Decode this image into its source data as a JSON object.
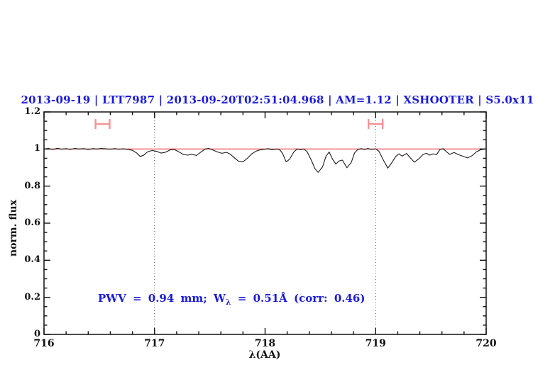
{
  "header": {
    "title": "2013-09-19 | LTT7987 | 2013-09-20T02:51:04.968 | AM=1.12 | XSHOOTER | S5.0x11",
    "color": "#1a1ad9"
  },
  "annotation": {
    "prefix": "PWV = 0.94 mm; W",
    "sub": "λ",
    "suffix": " = 0.51Å (corr: 0.46)",
    "color": "#1a1ad9"
  },
  "chart_data": {
    "type": "line",
    "title": "2013-09-19 | LTT7987 | 2013-09-20T02:51:04.968 | AM=1.12 | XSHOOTER | S5.0x11",
    "xlabel": "λ(AA)",
    "ylabel": "norm. flux",
    "xlim": [
      716,
      720
    ],
    "ylim": [
      0,
      1.2
    ],
    "x_major_ticks": [
      716,
      717,
      718,
      719,
      720
    ],
    "x_tick_labels": [
      "716",
      "717",
      "718",
      "719",
      "720"
    ],
    "x_minor_step": 0.2,
    "y_major_ticks": [
      0,
      0.2,
      0.4,
      0.6,
      0.8,
      1,
      1.2
    ],
    "y_tick_labels": [
      "0",
      "0.2",
      "0.4",
      "0.6",
      "0.8",
      "1",
      "1.2"
    ],
    "y_minor_step": 0.05,
    "grid": false,
    "dotted_vlines": [
      717,
      719
    ],
    "dotted_vline_color": "#555555",
    "frame_color": "#111111",
    "continuum_level": 1.0,
    "continuum_color": "#ee6666",
    "spectrum_color": "#1a1a1a",
    "marker_color": "#f29595",
    "band_markers": [
      {
        "center": 716.53,
        "half_width": 0.064,
        "flux": 1.135,
        "cap_half_height": 0.027
      },
      {
        "center": 719.0,
        "half_width": 0.064,
        "flux": 1.135,
        "cap_half_height": 0.027
      }
    ],
    "series": [
      {
        "name": "normalized spectrum",
        "points": [
          [
            716.0,
            1.0
          ],
          [
            716.04,
            1.003
          ],
          [
            716.08,
            0.997
          ],
          [
            716.12,
            1.004
          ],
          [
            716.16,
            0.999
          ],
          [
            716.2,
            1.002
          ],
          [
            716.24,
            0.998
          ],
          [
            716.28,
            1.003
          ],
          [
            716.32,
            1.0
          ],
          [
            716.36,
            1.002
          ],
          [
            716.4,
            0.997
          ],
          [
            716.44,
            1.002
          ],
          [
            716.48,
            1.0
          ],
          [
            716.52,
            1.003
          ],
          [
            716.56,
            1.001
          ],
          [
            716.6,
            0.999
          ],
          [
            716.64,
            1.002
          ],
          [
            716.68,
            0.999
          ],
          [
            716.72,
            1.001
          ],
          [
            716.76,
            0.998
          ],
          [
            716.8,
            0.993
          ],
          [
            716.84,
            0.978
          ],
          [
            716.87,
            0.96
          ],
          [
            716.9,
            0.966
          ],
          [
            716.94,
            0.986
          ],
          [
            716.98,
            0.992
          ],
          [
            717.02,
            0.987
          ],
          [
            717.06,
            0.978
          ],
          [
            717.1,
            0.983
          ],
          [
            717.14,
            0.995
          ],
          [
            717.18,
            0.997
          ],
          [
            717.22,
            0.985
          ],
          [
            717.26,
            0.971
          ],
          [
            717.3,
            0.967
          ],
          [
            717.34,
            0.972
          ],
          [
            717.38,
            0.965
          ],
          [
            717.42,
            0.984
          ],
          [
            717.46,
            1.0
          ],
          [
            717.49,
            1.003
          ],
          [
            717.53,
            0.994
          ],
          [
            717.57,
            0.984
          ],
          [
            717.61,
            0.977
          ],
          [
            717.65,
            0.982
          ],
          [
            717.68,
            0.974
          ],
          [
            717.72,
            0.954
          ],
          [
            717.76,
            0.934
          ],
          [
            717.8,
            0.931
          ],
          [
            717.84,
            0.95
          ],
          [
            717.88,
            0.974
          ],
          [
            717.92,
            0.989
          ],
          [
            717.96,
            0.996
          ],
          [
            718.0,
            0.999
          ],
          [
            718.03,
            1.002
          ],
          [
            718.06,
            0.996
          ],
          [
            718.1,
            1.0
          ],
          [
            718.13,
            0.998
          ],
          [
            718.16,
            0.975
          ],
          [
            718.19,
            0.931
          ],
          [
            718.22,
            0.944
          ],
          [
            718.26,
            0.984
          ],
          [
            718.29,
            1.0
          ],
          [
            718.32,
            0.996
          ],
          [
            718.35,
            1.0
          ],
          [
            718.38,
            0.986
          ],
          [
            718.42,
            0.938
          ],
          [
            718.45,
            0.895
          ],
          [
            718.48,
            0.874
          ],
          [
            718.52,
            0.904
          ],
          [
            718.55,
            0.96
          ],
          [
            718.58,
            0.984
          ],
          [
            718.61,
            0.945
          ],
          [
            718.64,
            0.919
          ],
          [
            718.67,
            0.936
          ],
          [
            718.7,
            0.94
          ],
          [
            718.74,
            0.899
          ],
          [
            718.78,
            0.928
          ],
          [
            718.81,
            0.98
          ],
          [
            718.84,
            0.998
          ],
          [
            718.87,
            1.002
          ],
          [
            718.9,
            0.997
          ],
          [
            718.93,
            1.003
          ],
          [
            718.96,
            0.998
          ],
          [
            719.0,
            1.001
          ],
          [
            719.03,
            0.988
          ],
          [
            719.07,
            0.94
          ],
          [
            719.11,
            0.897
          ],
          [
            719.14,
            0.921
          ],
          [
            719.18,
            0.958
          ],
          [
            719.21,
            0.974
          ],
          [
            719.24,
            0.962
          ],
          [
            719.28,
            0.976
          ],
          [
            719.31,
            0.955
          ],
          [
            719.35,
            0.929
          ],
          [
            719.39,
            0.947
          ],
          [
            719.43,
            0.971
          ],
          [
            719.46,
            0.977
          ],
          [
            719.49,
            0.967
          ],
          [
            719.52,
            0.974
          ],
          [
            719.55,
            0.969
          ],
          [
            719.58,
            0.996
          ],
          [
            719.61,
            1.002
          ],
          [
            719.64,
            0.986
          ],
          [
            719.67,
            0.971
          ],
          [
            719.71,
            0.981
          ],
          [
            719.75,
            0.969
          ],
          [
            719.79,
            0.961
          ],
          [
            719.83,
            0.952
          ],
          [
            719.87,
            0.963
          ],
          [
            719.91,
            0.984
          ],
          [
            719.95,
            0.996
          ],
          [
            720.0,
            1.001
          ]
        ]
      },
      {
        "name": "continuum fit",
        "points": [
          [
            716.0,
            1.0
          ],
          [
            720.0,
            1.0
          ]
        ]
      }
    ]
  }
}
